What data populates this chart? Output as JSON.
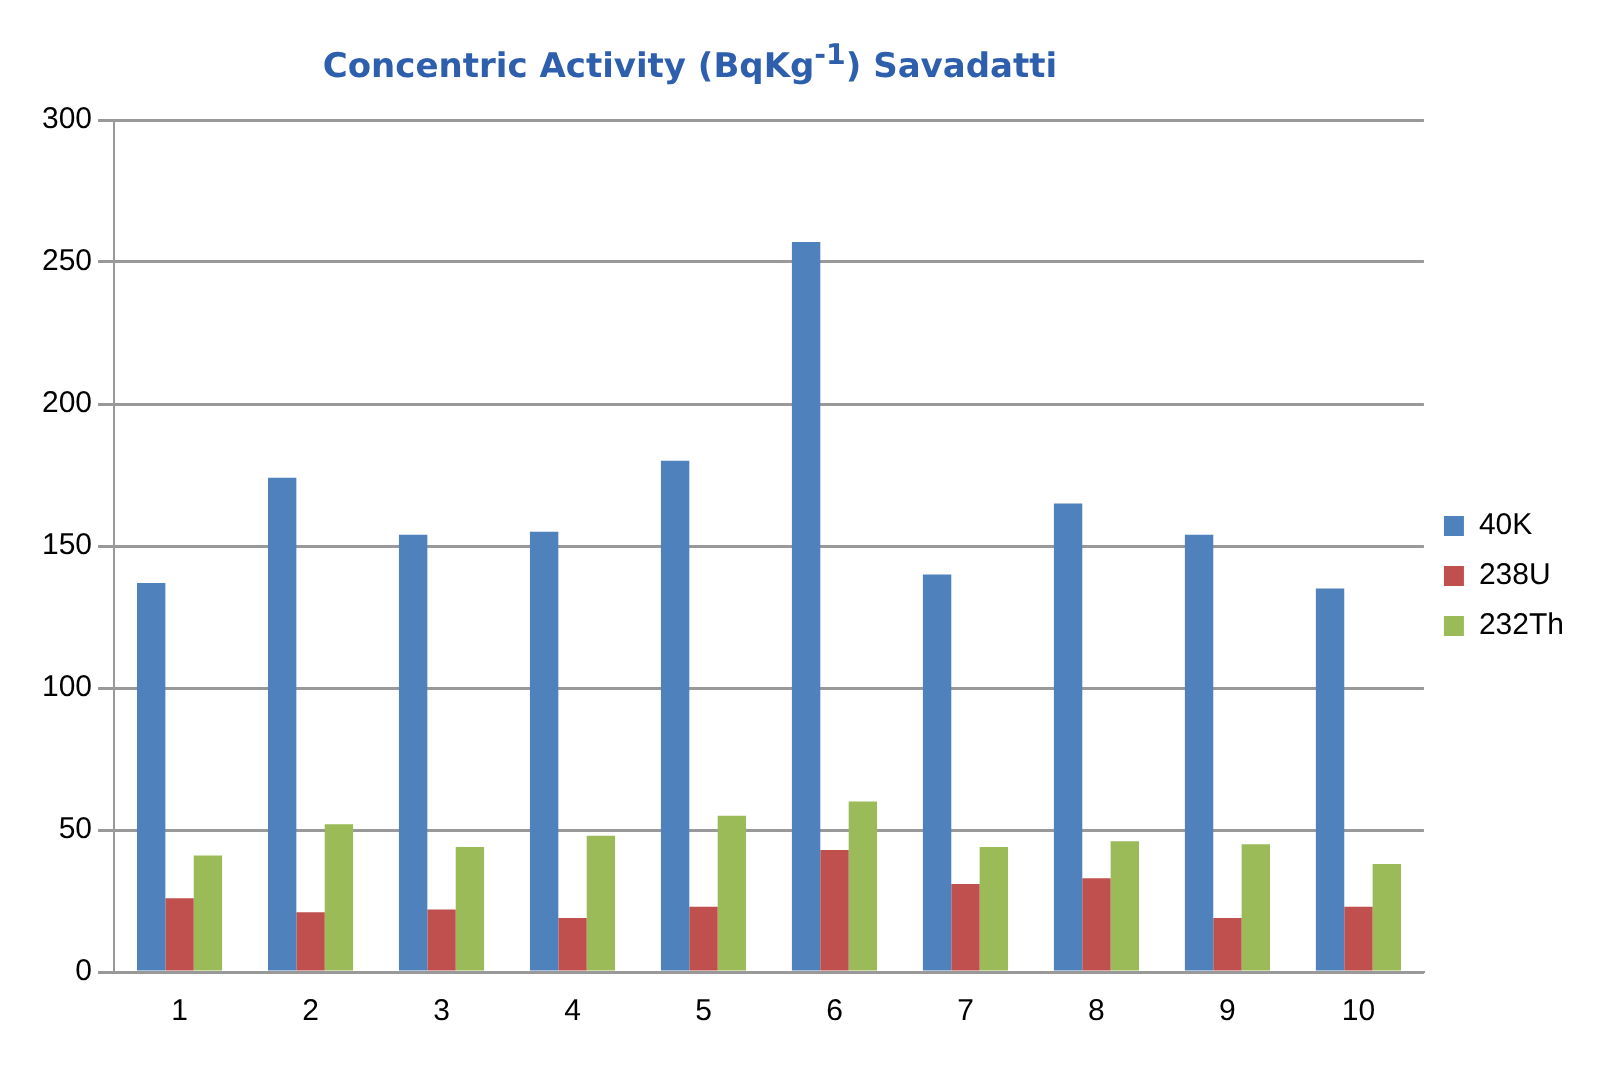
{
  "chart_data": {
    "type": "bar",
    "title": "Concentric Activity (BqKg$^{-1}$) Savadatti",
    "categories": [
      "1",
      "2",
      "3",
      "4",
      "5",
      "6",
      "7",
      "8",
      "9",
      "10"
    ],
    "series": [
      {
        "name": "40K",
        "color": "#4f81bd",
        "values": [
          137,
          174,
          154,
          155,
          180,
          257,
          140,
          165,
          154,
          135
        ]
      },
      {
        "name": "238U",
        "color": "#c0504d",
        "values": [
          26,
          21,
          22,
          19,
          23,
          43,
          31,
          33,
          19,
          23
        ]
      },
      {
        "name": "232Th",
        "color": "#9bbb59",
        "values": [
          41,
          52,
          44,
          48,
          55,
          60,
          44,
          46,
          45,
          38
        ]
      }
    ],
    "ylim": [
      0,
      300
    ],
    "yticks": [
      0,
      50,
      100,
      150,
      200,
      250,
      300
    ],
    "grid": "y",
    "legend": "right"
  }
}
